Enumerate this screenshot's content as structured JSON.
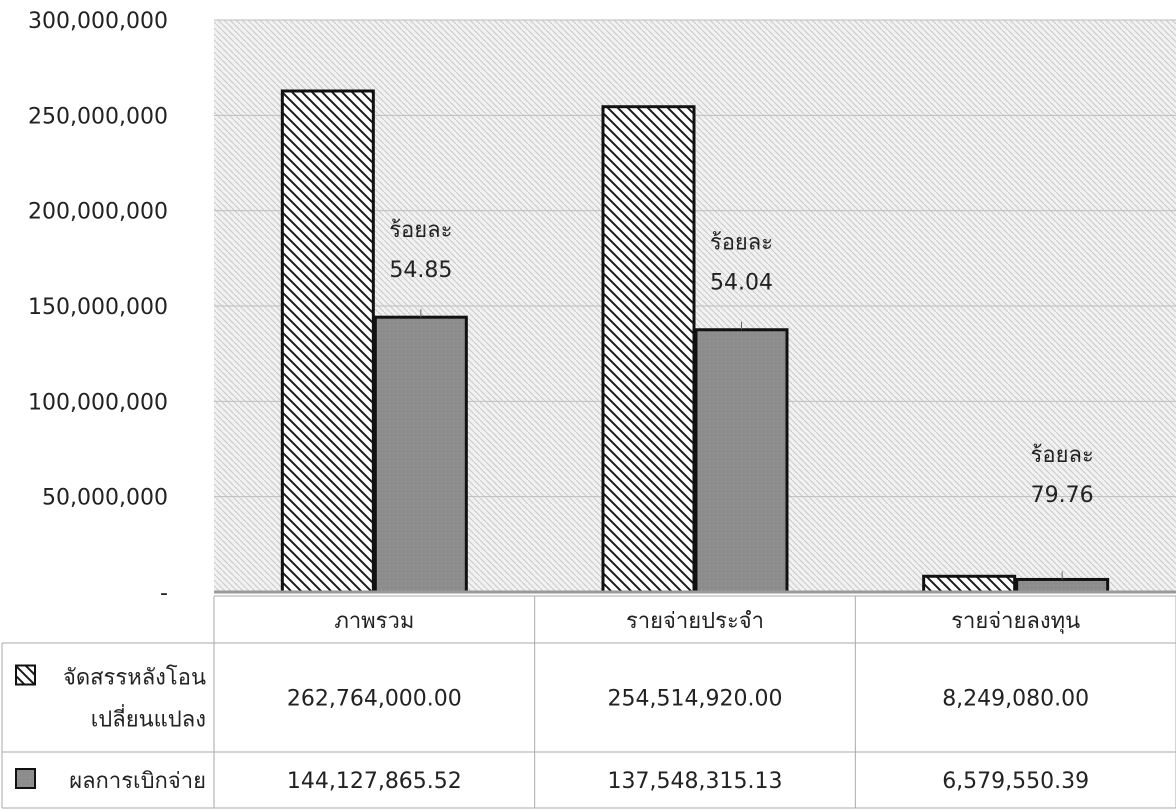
{
  "chart_data": {
    "type": "bar",
    "categories": [
      "ภาพรวม",
      "รายจ่ายประจำ",
      "รายจ่ายลงทุน"
    ],
    "series": [
      {
        "name": "จัดสรรหลังโอนเปลี่ยนแปลง",
        "name_lines": [
          "จัดสรรหลังโอน",
          "เปลี่ยนแปลง"
        ],
        "values": [
          262764000.0,
          254514920.0,
          8249080.0
        ],
        "value_labels": [
          "262,764,000.00",
          "254,514,920.00",
          "8,249,080.00"
        ],
        "fill": "hatch"
      },
      {
        "name": "ผลการเบิกจ่าย",
        "name_lines": [
          "ผลการเบิกจ่าย"
        ],
        "values": [
          144127865.52,
          137548315.13,
          6579550.39
        ],
        "value_labels": [
          "144,127,865.52",
          "137,548,315.13",
          "6,579,550.39"
        ],
        "fill": "#8a8a8a"
      }
    ],
    "annotations": [
      {
        "line1": "ร้อยละ",
        "line2": "54.85"
      },
      {
        "line1": "ร้อยละ",
        "line2": "54.04"
      },
      {
        "line1": "ร้อยละ",
        "line2": "79.76"
      }
    ],
    "ylim": [
      0,
      300000000
    ],
    "yticks": [
      0,
      50000000,
      100000000,
      150000000,
      200000000,
      250000000,
      300000000
    ],
    "ytick_labels": [
      "-",
      "50,000,000",
      "100,000,000",
      "150,000,000",
      "200,000,000",
      "250,000,000",
      "300,000,000"
    ],
    "grid": true,
    "legend": "data-table"
  }
}
